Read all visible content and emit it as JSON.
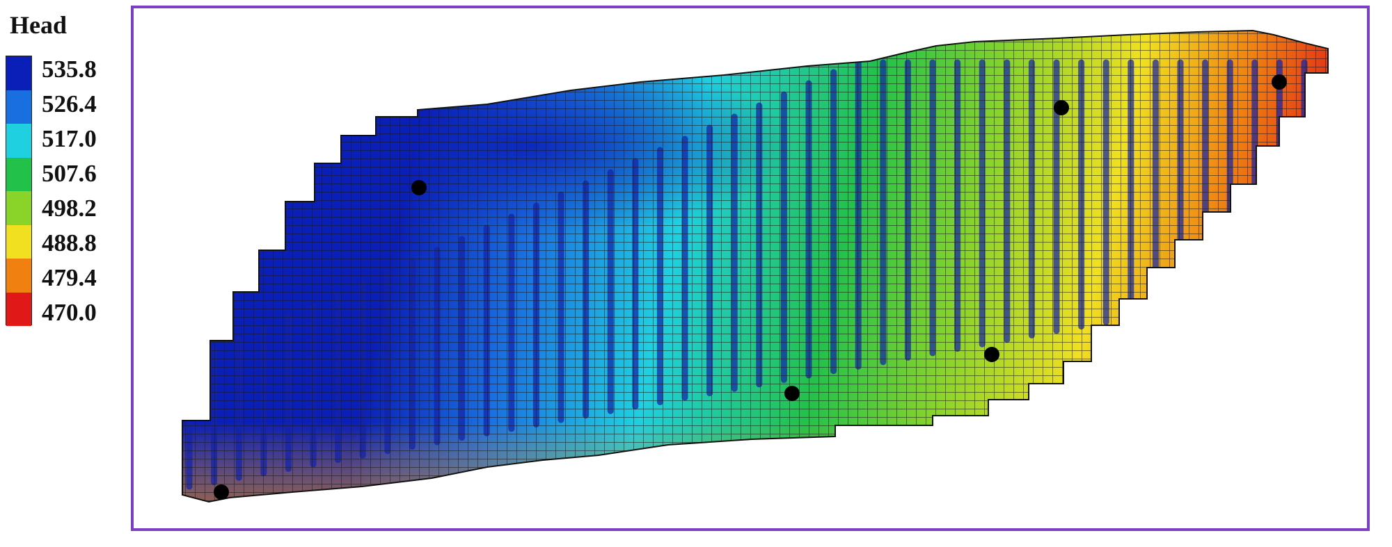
{
  "legend": {
    "title": "Head",
    "levels": [
      {
        "label": "535.8",
        "color": "#0a1fb8"
      },
      {
        "label": "526.4",
        "color": "#1a6fe0"
      },
      {
        "label": "517.0",
        "color": "#1fd0e0"
      },
      {
        "label": "507.6",
        "color": "#22c24a"
      },
      {
        "label": "498.2",
        "color": "#8ad42a"
      },
      {
        "label": "488.8",
        "color": "#f0e020"
      },
      {
        "label": "479.4",
        "color": "#f08010"
      },
      {
        "label": "470.0",
        "color": "#e01818"
      }
    ]
  },
  "wells": [
    {
      "id": "well-1"
    },
    {
      "id": "well-2"
    },
    {
      "id": "well-3"
    },
    {
      "id": "well-4"
    },
    {
      "id": "well-5"
    },
    {
      "id": "well-6"
    }
  ]
}
